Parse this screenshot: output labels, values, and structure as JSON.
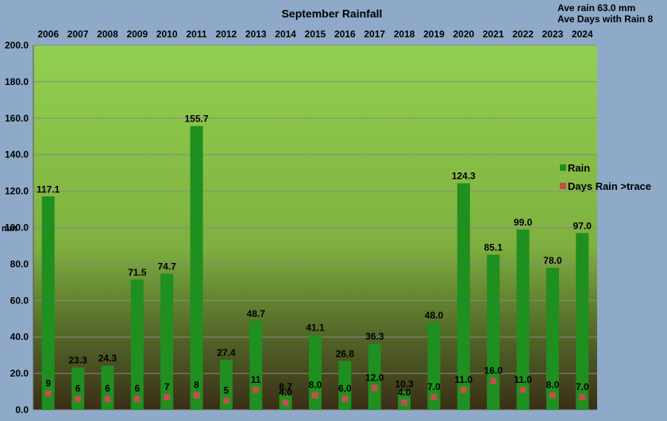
{
  "chart_data": {
    "type": "bar",
    "title": "September Rainfall",
    "ylabel": "mm",
    "categories": [
      "2006",
      "2007",
      "2008",
      "2009",
      "2010",
      "2011",
      "2012",
      "2013",
      "2014",
      "2015",
      "2016",
      "2017",
      "2018",
      "2019",
      "2020",
      "2021",
      "2022",
      "2023",
      "2024"
    ],
    "series": [
      {
        "name": "Rain",
        "color": "#1f8f1f",
        "values": [
          117.1,
          23.3,
          24.3,
          71.5,
          74.7,
          155.7,
          27.4,
          48.7,
          8.7,
          41.1,
          26.8,
          36.3,
          10.3,
          48.0,
          124.3,
          85.1,
          99.0,
          78.0,
          97.0
        ],
        "labels": [
          "117.1",
          "23.3",
          "24.3",
          "71.5",
          "74.7",
          "155.7",
          "27.4",
          "48.7",
          "8.7",
          "41.1",
          "26.8",
          "36.3",
          "10.3",
          "48.0",
          "124.3",
          "85.1",
          "99.0",
          "78.0",
          "97.0"
        ]
      },
      {
        "name": "Days Rain >trace",
        "color": "#c0504d",
        "values": [
          9,
          6,
          6,
          6,
          7,
          8,
          5,
          11,
          4,
          8,
          6,
          12,
          4,
          7,
          11,
          16,
          11,
          8,
          7
        ],
        "labels": [
          "9",
          "6",
          "6",
          "6",
          "7",
          "8",
          "5",
          "11",
          "4.0",
          "8.0",
          "6.0",
          "12.0",
          "4.0",
          "7.0",
          "11.0",
          "16.0",
          "11.0",
          "8.0",
          "7.0"
        ]
      }
    ],
    "ylim": [
      0,
      200
    ],
    "yticks": [
      "0.0",
      "20.0",
      "40.0",
      "60.0",
      "80.0",
      "100.0",
      "120.0",
      "140.0",
      "160.0",
      "180.0",
      "200.0"
    ],
    "grid": true,
    "legend_position": "right",
    "annotations": {
      "line1": "Ave rain 63.0 mm",
      "line2": "Ave Days with Rain 8"
    }
  }
}
